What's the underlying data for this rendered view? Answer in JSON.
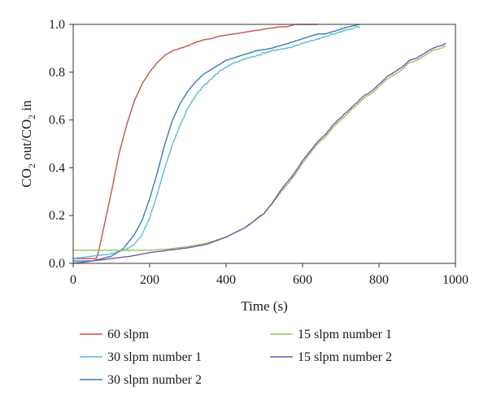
{
  "chart_data": {
    "type": "line",
    "title": "",
    "xlabel": "Time (s)",
    "ylabel_parts": [
      "CO",
      "2",
      " out/CO",
      "2",
      " in"
    ],
    "xlim": [
      0,
      1000
    ],
    "ylim": [
      0,
      1.0
    ],
    "xticks": [
      0,
      200,
      400,
      600,
      800,
      1000
    ],
    "yticks": [
      0.0,
      0.2,
      0.4,
      0.6,
      0.8,
      1.0
    ],
    "xtick_labels": [
      "0",
      "200",
      "400",
      "600",
      "800",
      "1000"
    ],
    "ytick_labels": [
      "0.0",
      "0.2",
      "0.4",
      "0.6",
      "0.8",
      "1.0"
    ],
    "grid": false,
    "legend_position": "bottom",
    "series": [
      {
        "name": "60 slpm",
        "color": "#c9504b",
        "x": [
          0,
          60,
          65,
          80,
          100,
          120,
          140,
          160,
          180,
          200,
          220,
          240,
          260,
          280,
          300,
          320,
          340,
          360,
          380,
          400,
          420,
          440,
          460,
          480,
          500,
          520,
          540,
          560,
          580,
          600,
          620,
          640
        ],
        "y": [
          0.02,
          0.02,
          0.04,
          0.15,
          0.3,
          0.46,
          0.58,
          0.68,
          0.75,
          0.8,
          0.84,
          0.87,
          0.89,
          0.9,
          0.91,
          0.925,
          0.935,
          0.94,
          0.95,
          0.955,
          0.96,
          0.965,
          0.97,
          0.975,
          0.98,
          0.985,
          0.99,
          0.99,
          1.0,
          1.0,
          1.0,
          1.0
        ]
      },
      {
        "name": "30 slpm number 1",
        "color": "#5bbcd6",
        "x": [
          0,
          50,
          100,
          140,
          160,
          180,
          200,
          220,
          240,
          260,
          280,
          300,
          320,
          340,
          360,
          380,
          400,
          420,
          440,
          460,
          480,
          500,
          520,
          540,
          560,
          580,
          600,
          620,
          640,
          660,
          680,
          700,
          720,
          750
        ],
        "y": [
          0.02,
          0.03,
          0.04,
          0.06,
          0.08,
          0.12,
          0.19,
          0.29,
          0.4,
          0.5,
          0.58,
          0.65,
          0.7,
          0.74,
          0.77,
          0.8,
          0.82,
          0.84,
          0.85,
          0.86,
          0.87,
          0.88,
          0.89,
          0.895,
          0.9,
          0.91,
          0.92,
          0.93,
          0.94,
          0.95,
          0.96,
          0.97,
          0.98,
          0.99
        ]
      },
      {
        "name": "30 slpm number 2",
        "color": "#3a7bb8",
        "x": [
          0,
          50,
          100,
          130,
          160,
          180,
          200,
          220,
          240,
          260,
          280,
          300,
          320,
          340,
          360,
          380,
          400,
          420,
          440,
          460,
          480,
          500,
          520,
          540,
          560,
          580,
          600,
          620,
          640,
          660,
          680,
          700,
          720,
          750
        ],
        "y": [
          0.01,
          0.01,
          0.03,
          0.06,
          0.12,
          0.18,
          0.27,
          0.38,
          0.5,
          0.6,
          0.67,
          0.72,
          0.76,
          0.79,
          0.81,
          0.83,
          0.85,
          0.86,
          0.87,
          0.88,
          0.89,
          0.895,
          0.9,
          0.91,
          0.92,
          0.93,
          0.94,
          0.95,
          0.96,
          0.96,
          0.97,
          0.98,
          0.99,
          1.0
        ]
      },
      {
        "name": "15 slpm number 1",
        "color": "#8fc85a",
        "x": [
          0,
          50,
          100,
          150,
          200,
          250,
          300,
          350,
          400,
          450,
          500,
          520,
          540,
          560,
          580,
          600,
          620,
          640,
          660,
          680,
          700,
          720,
          740,
          760,
          780,
          800,
          820,
          840,
          860,
          880,
          900,
          920,
          940,
          960,
          975
        ],
        "y": [
          0.055,
          0.055,
          0.055,
          0.055,
          0.055,
          0.06,
          0.07,
          0.085,
          0.11,
          0.15,
          0.21,
          0.25,
          0.29,
          0.33,
          0.37,
          0.42,
          0.46,
          0.5,
          0.53,
          0.57,
          0.6,
          0.63,
          0.66,
          0.69,
          0.71,
          0.74,
          0.77,
          0.79,
          0.81,
          0.84,
          0.85,
          0.87,
          0.89,
          0.9,
          0.91
        ]
      },
      {
        "name": "15 slpm number 2",
        "color": "#7c52a8",
        "x": [
          0,
          50,
          100,
          150,
          200,
          250,
          300,
          350,
          400,
          450,
          500,
          520,
          540,
          560,
          580,
          600,
          620,
          640,
          660,
          680,
          700,
          720,
          740,
          760,
          780,
          800,
          820,
          840,
          860,
          880,
          900,
          920,
          940,
          960,
          975
        ],
        "y": [
          0.0,
          0.01,
          0.02,
          0.03,
          0.045,
          0.055,
          0.065,
          0.08,
          0.11,
          0.15,
          0.21,
          0.25,
          0.3,
          0.34,
          0.38,
          0.43,
          0.47,
          0.51,
          0.54,
          0.58,
          0.61,
          0.64,
          0.67,
          0.7,
          0.72,
          0.75,
          0.78,
          0.8,
          0.82,
          0.85,
          0.86,
          0.88,
          0.9,
          0.91,
          0.92
        ]
      }
    ]
  }
}
